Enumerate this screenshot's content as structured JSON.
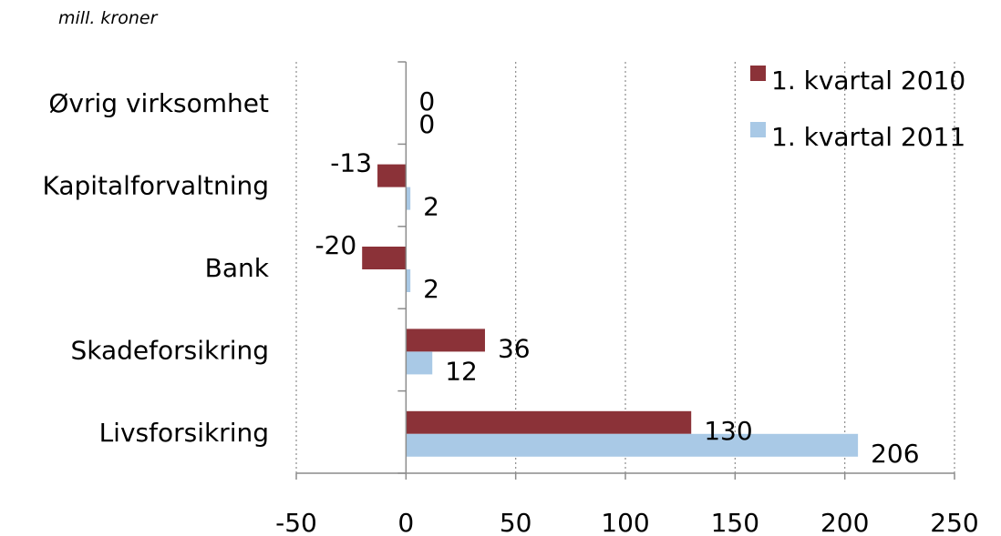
{
  "chart_data": {
    "type": "bar",
    "orientation": "horizontal",
    "unit_label": "mill. kroner",
    "categories": [
      "Øvrig virksomhet",
      "Kapitalforvaltning",
      "Bank",
      "Skadeforsikring",
      "Livsforsikring"
    ],
    "series": [
      {
        "name": "1. kvartal 2010",
        "color": "#8b3238",
        "values": [
          0,
          -13,
          -20,
          36,
          130
        ]
      },
      {
        "name": "1. kvartal 2011",
        "color": "#a9c9e6",
        "values": [
          0,
          2,
          2,
          12,
          206
        ]
      }
    ],
    "xlim": [
      -50,
      250
    ],
    "xticks": [
      -50,
      0,
      50,
      100,
      150,
      200,
      250
    ],
    "grid": true,
    "legend_position": "top-right"
  }
}
